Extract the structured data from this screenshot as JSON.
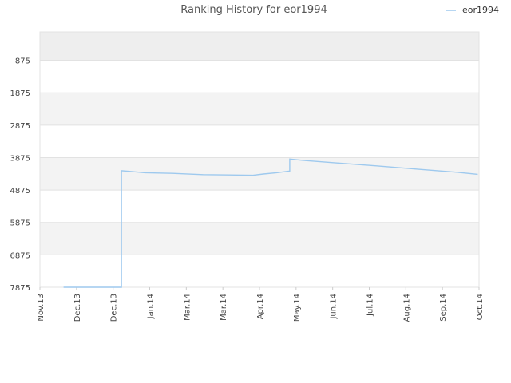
{
  "chart_data": {
    "type": "line",
    "title": "Ranking History for eor1994",
    "xlabel": "",
    "ylabel": "",
    "y_inverted": true,
    "ylim": [
      0,
      7875
    ],
    "y_ticks": [
      875,
      1875,
      2875,
      3875,
      4875,
      5875,
      6875,
      7875
    ],
    "x_ticks": [
      "Nov.13",
      "Dec.13",
      "Dec.13",
      "Jan.14",
      "Mar.14",
      "Mar.14",
      "Apr.14",
      "May.14",
      "Jun.14",
      "Jul.14",
      "Aug.14",
      "Sep.14",
      "Oct.14"
    ],
    "grid": "horizontal-bands",
    "legend_position": "top-right",
    "series": [
      {
        "name": "eor1994",
        "color": "#9ec9ee",
        "points": [
          [
            "2013-11-19",
            7875
          ],
          [
            "2014-01-02",
            7875
          ],
          [
            "2014-01-02",
            4280
          ],
          [
            "2014-01-08",
            4300
          ],
          [
            "2014-01-20",
            4340
          ],
          [
            "2014-02-10",
            4360
          ],
          [
            "2014-03-05",
            4400
          ],
          [
            "2014-03-25",
            4410
          ],
          [
            "2014-04-12",
            4420
          ],
          [
            "2014-04-20",
            4380
          ],
          [
            "2014-04-30",
            4340
          ],
          [
            "2014-05-10",
            4290
          ],
          [
            "2014-05-10",
            3920
          ],
          [
            "2014-05-20",
            3960
          ],
          [
            "2014-06-15",
            4040
          ],
          [
            "2014-07-15",
            4130
          ],
          [
            "2014-08-15",
            4230
          ],
          [
            "2014-09-15",
            4330
          ],
          [
            "2014-09-30",
            4390
          ]
        ]
      }
    ]
  }
}
